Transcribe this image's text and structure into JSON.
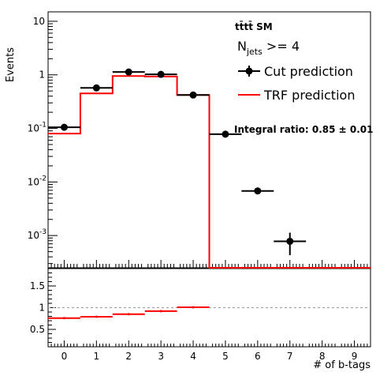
{
  "chart_data": {
    "type": "histogram-with-ratio",
    "upper_panel": {
      "ylabel": "Events",
      "y_scale": "log",
      "ylim": [
        0.00025,
        15
      ],
      "y_ticks": [
        {
          "value": 10,
          "base": "10",
          "exp": ""
        },
        {
          "value": 1,
          "base": "1",
          "exp": ""
        },
        {
          "value": 0.1,
          "base": "10",
          "exp": "-1"
        },
        {
          "value": 0.01,
          "base": "10",
          "exp": "-2"
        },
        {
          "value": 0.001,
          "base": "10",
          "exp": "-3"
        }
      ],
      "title_line": "tt̄tt̄ SM",
      "condition": {
        "symbol": "N",
        "subscript": "jets",
        "text": " >= 4"
      },
      "annotation": "Integral ratio: 0.85 ± 0.01",
      "legend_placement": "top-right",
      "series": [
        {
          "name": "Cut prediction",
          "style": "markers-with-errors",
          "color": "#000000",
          "x": [
            0,
            1,
            2,
            3,
            4,
            5,
            6,
            7
          ],
          "y": [
            0.105,
            0.57,
            1.13,
            1.02,
            0.42,
            0.078,
            0.0068,
            0.00078
          ],
          "y_err_up": [
            0.01,
            0.05,
            0.08,
            0.08,
            0.04,
            0.008,
            0.0007,
            0.00035
          ],
          "y_err_down": [
            0.01,
            0.05,
            0.08,
            0.08,
            0.04,
            0.008,
            0.0007,
            0.00035
          ]
        },
        {
          "name": "TRF prediction",
          "style": "step",
          "color": "#ff0000",
          "x": [
            0,
            1,
            2,
            3,
            4,
            5,
            6,
            7,
            8,
            9
          ],
          "y": [
            0.08,
            0.45,
            0.95,
            0.93,
            0.42,
            0.00025,
            0.00025,
            0.00025,
            0.00025,
            0.00025
          ]
        }
      ]
    },
    "lower_panel": {
      "ylim": [
        0.1,
        1.9
      ],
      "y_ticks": [
        0.5,
        1,
        1.5
      ],
      "reference_line": 1,
      "ratio": {
        "color": "#ff0000",
        "x": [
          0,
          1,
          2,
          3,
          4
        ],
        "y": [
          0.76,
          0.79,
          0.85,
          0.92,
          1.01
        ]
      }
    },
    "x_axis": {
      "xlabel": "# of b-tags",
      "xlim": [
        -0.5,
        9.5
      ],
      "ticks": [
        0,
        1,
        2,
        3,
        4,
        5,
        6,
        7,
        8,
        9
      ]
    }
  }
}
